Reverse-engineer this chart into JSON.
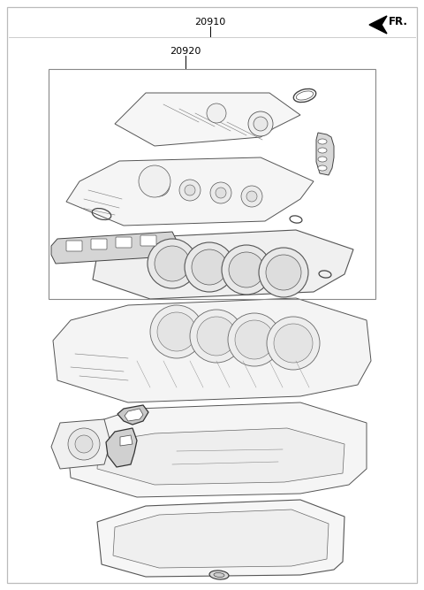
{
  "label_20910": "20910",
  "label_20920": "20920",
  "fr_label": "FR.",
  "line_color": "#3a3a3a",
  "part_face": "#f7f7f7",
  "part_edge": "#555555",
  "gasket_face": "#e0e0e0",
  "white": "#ffffff",
  "border_color": "#aaaaaa"
}
